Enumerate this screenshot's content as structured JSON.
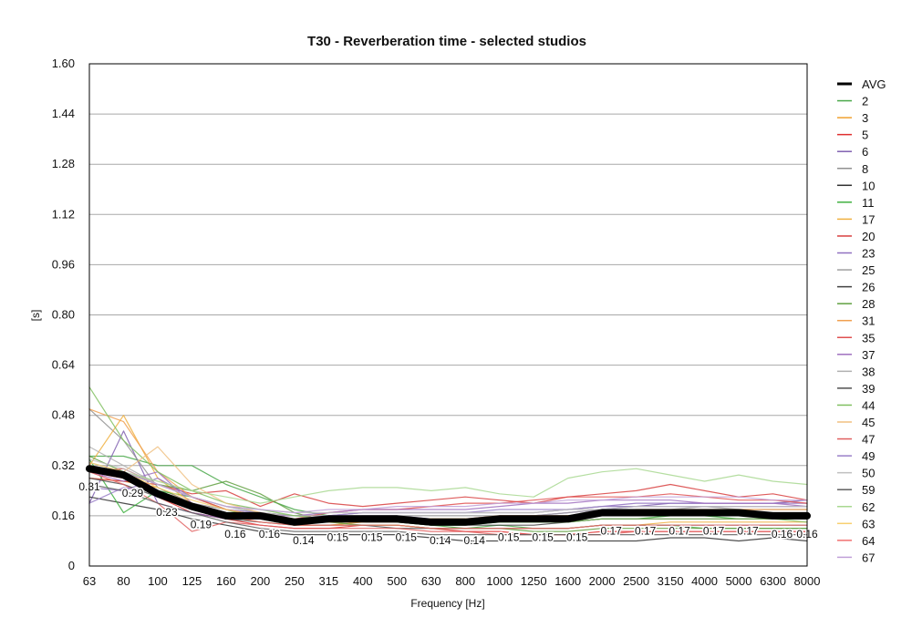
{
  "chart_data": {
    "type": "line",
    "title": "T30 - Reverberation time - selected studios",
    "xlabel": "Frequency [Hz]",
    "ylabel": "[s]",
    "categories": [
      "63",
      "80",
      "100",
      "125",
      "160",
      "200",
      "250",
      "315",
      "400",
      "500",
      "630",
      "800",
      "1000",
      "1250",
      "1600",
      "2000",
      "2500",
      "3150",
      "4000",
      "5000",
      "6300",
      "8000"
    ],
    "ylim": [
      0,
      1.6
    ],
    "yticks": [
      "0",
      "0.16",
      "0.32",
      "0.48",
      "0.64",
      "0.80",
      "0.96",
      "1.12",
      "1.28",
      "1.44",
      "1.60"
    ],
    "grid": "horizontal",
    "legend_position": "right",
    "series": [
      {
        "name": "AVG",
        "color": "#000000",
        "values": [
          0.31,
          0.29,
          0.23,
          0.19,
          0.16,
          0.16,
          0.14,
          0.15,
          0.15,
          0.15,
          0.14,
          0.14,
          0.15,
          0.15,
          0.15,
          0.17,
          0.17,
          0.17,
          0.17,
          0.17,
          0.16,
          0.16
        ],
        "labels": [
          "0.31",
          "0.29",
          "0.23",
          "0.19",
          "0.16",
          "0.16",
          "0.14",
          "0.15",
          "0.15",
          "0.15",
          "0.14",
          "0.14",
          "0.15",
          "0.15",
          "0.15",
          "0.17",
          "0.17",
          "0.17",
          "0.17",
          "0.17",
          "0.16",
          "0.16"
        ]
      },
      {
        "name": "2",
        "color": "#4aa84a",
        "values": [
          0.35,
          0.35,
          0.32,
          0.32,
          0.26,
          0.22,
          0.18,
          0.16,
          0.15,
          0.14,
          0.13,
          0.12,
          0.13,
          0.12,
          0.12,
          0.13,
          0.13,
          0.13,
          0.12,
          0.12,
          0.12,
          0.12
        ]
      },
      {
        "name": "3",
        "color": "#f0a030",
        "values": [
          0.28,
          0.27,
          0.25,
          0.2,
          0.17,
          0.15,
          0.13,
          0.13,
          0.14,
          0.14,
          0.14,
          0.15,
          0.15,
          0.15,
          0.16,
          0.16,
          0.17,
          0.17,
          0.17,
          0.16,
          0.16,
          0.16
        ]
      },
      {
        "name": "5",
        "color": "#e03030",
        "values": [
          0.3,
          0.28,
          0.22,
          0.17,
          0.15,
          0.13,
          0.12,
          0.12,
          0.13,
          0.13,
          0.12,
          0.11,
          0.11,
          0.1,
          0.1,
          0.11,
          0.11,
          0.11,
          0.11,
          0.11,
          0.11,
          0.11
        ]
      },
      {
        "name": "6",
        "color": "#8060b0",
        "values": [
          0.2,
          0.43,
          0.2,
          0.17,
          0.15,
          0.15,
          0.14,
          0.15,
          0.16,
          0.16,
          0.15,
          0.15,
          0.16,
          0.16,
          0.17,
          0.18,
          0.19,
          0.2,
          0.2,
          0.2,
          0.2,
          0.21
        ]
      },
      {
        "name": "8",
        "color": "#909090",
        "values": [
          0.5,
          0.4,
          0.25,
          0.2,
          0.18,
          0.16,
          0.15,
          0.15,
          0.15,
          0.15,
          0.15,
          0.15,
          0.15,
          0.15,
          0.16,
          0.17,
          0.17,
          0.17,
          0.17,
          0.17,
          0.17,
          0.17
        ]
      },
      {
        "name": "10",
        "color": "#303030",
        "values": [
          0.22,
          0.2,
          0.18,
          0.15,
          0.13,
          0.11,
          0.1,
          0.1,
          0.1,
          0.1,
          0.09,
          0.08,
          0.08,
          0.08,
          0.08,
          0.08,
          0.08,
          0.09,
          0.09,
          0.08,
          0.09,
          0.08
        ]
      },
      {
        "name": "11",
        "color": "#40b040",
        "values": [
          0.34,
          0.17,
          0.24,
          0.22,
          0.18,
          0.15,
          0.14,
          0.14,
          0.15,
          0.14,
          0.13,
          0.13,
          0.14,
          0.14,
          0.14,
          0.15,
          0.15,
          0.16,
          0.16,
          0.15,
          0.15,
          0.15
        ]
      },
      {
        "name": "17",
        "color": "#f0b040",
        "values": [
          0.32,
          0.48,
          0.28,
          0.2,
          0.16,
          0.14,
          0.13,
          0.13,
          0.13,
          0.13,
          0.12,
          0.12,
          0.12,
          0.12,
          0.12,
          0.13,
          0.13,
          0.14,
          0.14,
          0.14,
          0.14,
          0.14
        ]
      },
      {
        "name": "20",
        "color": "#d84040",
        "values": [
          0.28,
          0.27,
          0.26,
          0.23,
          0.24,
          0.19,
          0.23,
          0.2,
          0.19,
          0.2,
          0.21,
          0.22,
          0.21,
          0.2,
          0.22,
          0.23,
          0.24,
          0.26,
          0.24,
          0.22,
          0.23,
          0.21
        ]
      },
      {
        "name": "23",
        "color": "#9070c0",
        "values": [
          0.25,
          0.24,
          0.28,
          0.22,
          0.18,
          0.17,
          0.16,
          0.16,
          0.17,
          0.17,
          0.17,
          0.17,
          0.17,
          0.17,
          0.18,
          0.19,
          0.2,
          0.2,
          0.2,
          0.2,
          0.2,
          0.2
        ]
      },
      {
        "name": "25",
        "color": "#a0a0a0",
        "values": [
          0.33,
          0.3,
          0.26,
          0.22,
          0.19,
          0.17,
          0.16,
          0.16,
          0.16,
          0.16,
          0.16,
          0.16,
          0.16,
          0.16,
          0.17,
          0.18,
          0.18,
          0.18,
          0.19,
          0.18,
          0.18,
          0.18
        ]
      },
      {
        "name": "26",
        "color": "#404040",
        "values": [
          0.3,
          0.29,
          0.24,
          0.2,
          0.17,
          0.15,
          0.14,
          0.14,
          0.14,
          0.14,
          0.13,
          0.13,
          0.13,
          0.13,
          0.14,
          0.15,
          0.15,
          0.15,
          0.15,
          0.15,
          0.15,
          0.15
        ]
      },
      {
        "name": "28",
        "color": "#60a040",
        "values": [
          0.35,
          0.3,
          0.26,
          0.24,
          0.27,
          0.23,
          0.17,
          0.14,
          0.13,
          0.13,
          0.12,
          0.12,
          0.12,
          0.11,
          0.11,
          0.12,
          0.12,
          0.12,
          0.12,
          0.12,
          0.12,
          0.12
        ]
      },
      {
        "name": "31",
        "color": "#f0a050",
        "values": [
          0.5,
          0.46,
          0.3,
          0.22,
          0.18,
          0.16,
          0.14,
          0.14,
          0.14,
          0.15,
          0.15,
          0.15,
          0.16,
          0.16,
          0.16,
          0.17,
          0.18,
          0.18,
          0.18,
          0.18,
          0.18,
          0.18
        ]
      },
      {
        "name": "35",
        "color": "#e05050",
        "values": [
          0.3,
          0.31,
          0.26,
          0.22,
          0.18,
          0.16,
          0.15,
          0.17,
          0.18,
          0.18,
          0.19,
          0.2,
          0.2,
          0.21,
          0.22,
          0.22,
          0.22,
          0.23,
          0.22,
          0.21,
          0.21,
          0.2
        ]
      },
      {
        "name": "37",
        "color": "#a070c0",
        "values": [
          0.3,
          0.27,
          0.3,
          0.2,
          0.17,
          0.16,
          0.16,
          0.17,
          0.18,
          0.18,
          0.18,
          0.18,
          0.19,
          0.2,
          0.2,
          0.21,
          0.21,
          0.21,
          0.2,
          0.2,
          0.2,
          0.19
        ]
      },
      {
        "name": "38",
        "color": "#b0b0b0",
        "values": [
          0.38,
          0.32,
          0.26,
          0.22,
          0.19,
          0.17,
          0.16,
          0.16,
          0.17,
          0.17,
          0.17,
          0.17,
          0.17,
          0.17,
          0.18,
          0.19,
          0.19,
          0.19,
          0.19,
          0.19,
          0.19,
          0.19
        ]
      },
      {
        "name": "39",
        "color": "#505050",
        "values": [
          0.28,
          0.26,
          0.22,
          0.18,
          0.15,
          0.14,
          0.13,
          0.13,
          0.13,
          0.12,
          0.12,
          0.12,
          0.12,
          0.12,
          0.12,
          0.13,
          0.13,
          0.13,
          0.13,
          0.13,
          0.13,
          0.13
        ]
      },
      {
        "name": "44",
        "color": "#80c060",
        "values": [
          0.57,
          0.4,
          0.3,
          0.24,
          0.2,
          0.18,
          0.16,
          0.15,
          0.15,
          0.15,
          0.14,
          0.14,
          0.14,
          0.14,
          0.14,
          0.15,
          0.15,
          0.15,
          0.15,
          0.15,
          0.15,
          0.14
        ]
      },
      {
        "name": "45",
        "color": "#f0c080",
        "values": [
          0.3,
          0.3,
          0.38,
          0.26,
          0.2,
          0.17,
          0.15,
          0.15,
          0.15,
          0.15,
          0.15,
          0.15,
          0.15,
          0.15,
          0.16,
          0.16,
          0.17,
          0.17,
          0.17,
          0.17,
          0.17,
          0.17
        ]
      },
      {
        "name": "47",
        "color": "#e06060",
        "values": [
          0.3,
          0.26,
          0.2,
          0.11,
          0.14,
          0.13,
          0.12,
          0.12,
          0.12,
          0.12,
          0.11,
          0.11,
          0.1,
          0.1,
          0.1,
          0.1,
          0.11,
          0.11,
          0.11,
          0.11,
          0.11,
          0.11
        ]
      },
      {
        "name": "49",
        "color": "#9a80c8",
        "values": [
          0.2,
          0.25,
          0.24,
          0.18,
          0.16,
          0.15,
          0.15,
          0.16,
          0.17,
          0.17,
          0.17,
          0.17,
          0.18,
          0.18,
          0.18,
          0.19,
          0.19,
          0.19,
          0.19,
          0.19,
          0.19,
          0.19
        ]
      },
      {
        "name": "50",
        "color": "#c0c0c0",
        "values": [
          0.34,
          0.31,
          0.26,
          0.22,
          0.19,
          0.18,
          0.17,
          0.17,
          0.17,
          0.17,
          0.17,
          0.17,
          0.17,
          0.17,
          0.18,
          0.18,
          0.19,
          0.19,
          0.19,
          0.19,
          0.19,
          0.19
        ]
      },
      {
        "name": "59",
        "color": "#606060",
        "values": [
          0.26,
          0.24,
          0.2,
          0.17,
          0.14,
          0.12,
          0.11,
          0.11,
          0.11,
          0.11,
          0.1,
          0.1,
          0.1,
          0.1,
          0.1,
          0.1,
          0.1,
          0.1,
          0.1,
          0.1,
          0.1,
          0.1
        ]
      },
      {
        "name": "62",
        "color": "#a8d890",
        "values": [
          0.32,
          0.3,
          0.27,
          0.24,
          0.22,
          0.2,
          0.22,
          0.24,
          0.25,
          0.25,
          0.24,
          0.25,
          0.23,
          0.22,
          0.28,
          0.3,
          0.31,
          0.29,
          0.27,
          0.29,
          0.27,
          0.26
        ]
      },
      {
        "name": "63",
        "color": "#f8d070",
        "values": [
          0.33,
          0.3,
          0.25,
          0.21,
          0.18,
          0.16,
          0.15,
          0.15,
          0.15,
          0.15,
          0.15,
          0.15,
          0.15,
          0.15,
          0.16,
          0.16,
          0.17,
          0.17,
          0.17,
          0.17,
          0.16,
          0.16
        ]
      },
      {
        "name": "64",
        "color": "#f07070",
        "values": [
          0.31,
          0.3,
          0.24,
          0.19,
          0.16,
          0.14,
          0.13,
          0.13,
          0.13,
          0.13,
          0.12,
          0.12,
          0.12,
          0.12,
          0.12,
          0.13,
          0.13,
          0.13,
          0.13,
          0.13,
          0.13,
          0.13
        ]
      },
      {
        "name": "67",
        "color": "#c0a0d8",
        "values": [
          0.32,
          0.3,
          0.26,
          0.22,
          0.19,
          0.18,
          0.17,
          0.18,
          0.18,
          0.19,
          0.19,
          0.19,
          0.2,
          0.2,
          0.21,
          0.21,
          0.22,
          0.22,
          0.22,
          0.22,
          0.21,
          0.21
        ]
      }
    ]
  }
}
